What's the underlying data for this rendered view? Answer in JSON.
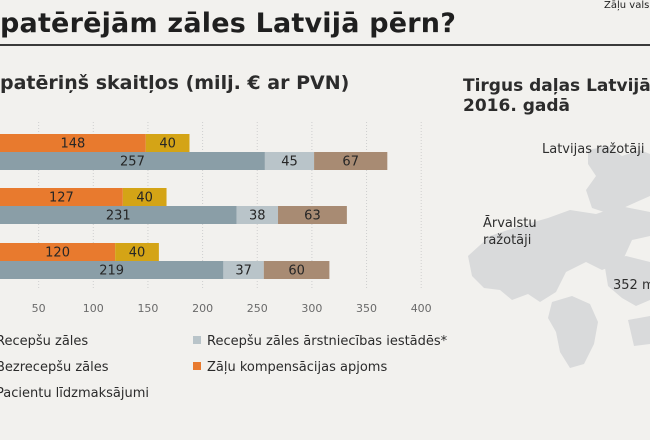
{
  "source_note": "Zāļu vals",
  "title": "patērējām zāles Latvijā pērn?",
  "subtitle": "patēriņš skaitļos (milj. € ar PVN)",
  "side": {
    "title_line1": "Tirgus daļas Latvijā",
    "title_line2": "2016. gadā",
    "label_local": "Latvijas ražotāji",
    "label_foreign_line1": "Ārvalstu",
    "label_foreign_line2": "ražotāji",
    "label_value": "352 m"
  },
  "legend": [
    {
      "label": "Recepšu zāles",
      "color": "#8a9ea7"
    },
    {
      "label": "Bezrecepšu zāles",
      "color": "#d4a416"
    },
    {
      "label": "Pacientu līdzmaksājumi",
      "color": "#a88b73"
    },
    {
      "label": "Recepšu zāles ārstniecības iestādēs*",
      "color": "#b9c4c9"
    },
    {
      "label": "Zāļu kompensācijas apjoms",
      "color": "#e87a2e"
    }
  ],
  "chart_data": {
    "type": "bar",
    "orientation": "horizontal",
    "stacked": true,
    "xlim": [
      0,
      420
    ],
    "x_ticks": [
      50,
      100,
      150,
      200,
      250,
      300,
      350,
      400
    ],
    "grid": true,
    "colors": {
      "compensation": "#e87a2e",
      "otc": "#d4a416",
      "rx": "#8a9ea7",
      "hospital": "#b9c4c9",
      "copay": "#a88b73"
    },
    "groups": [
      {
        "top": [
          {
            "key": "compensation",
            "value": 148
          },
          {
            "key": "otc",
            "value": 40
          }
        ],
        "bottom": [
          {
            "key": "rx",
            "value": 257
          },
          {
            "key": "hospital",
            "value": 45
          },
          {
            "key": "copay",
            "value": 67
          }
        ]
      },
      {
        "top": [
          {
            "key": "compensation",
            "value": 127
          },
          {
            "key": "otc",
            "value": 40
          }
        ],
        "bottom": [
          {
            "key": "rx",
            "value": 231
          },
          {
            "key": "hospital",
            "value": 38
          },
          {
            "key": "copay",
            "value": 63
          }
        ]
      },
      {
        "top": [
          {
            "key": "compensation",
            "value": 120
          },
          {
            "key": "otc",
            "value": 40
          }
        ],
        "bottom": [
          {
            "key": "rx",
            "value": 219
          },
          {
            "key": "hospital",
            "value": 37
          },
          {
            "key": "copay",
            "value": 60
          }
        ]
      }
    ]
  }
}
